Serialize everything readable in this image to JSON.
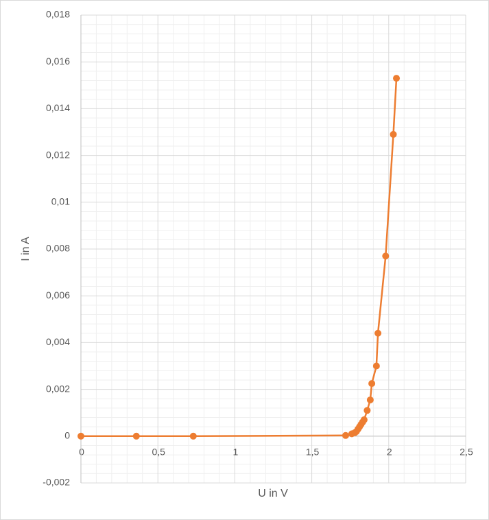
{
  "chart_data": {
    "type": "scatter-line",
    "x_label": "U in V",
    "y_label": "I in A",
    "x": [
      0,
      0.36,
      0.73,
      1.72,
      1.76,
      1.78,
      1.79,
      1.8,
      1.81,
      1.82,
      1.83,
      1.84,
      1.86,
      1.88,
      1.89,
      1.92,
      1.93,
      1.98,
      2.03,
      2.05
    ],
    "values": [
      0,
      0,
      0,
      3e-05,
      0.0001,
      0.00015,
      0.0002,
      0.0003,
      0.0004,
      0.0005,
      0.0006,
      0.0007,
      0.0011,
      0.00155,
      0.00225,
      0.003,
      0.0044,
      0.0077,
      0.0129,
      0.0153
    ],
    "color": "#ed7d31",
    "xlim": [
      0,
      2.5
    ],
    "xticks": [
      0,
      {
        "value": 0.5,
        "label": "0,5"
      },
      1,
      {
        "value": 1.5,
        "label": "1,5"
      },
      2,
      {
        "value": 2.5,
        "label": "2,5"
      }
    ],
    "ylim": [
      -0.002,
      0.018
    ],
    "yticks": [
      {
        "value": -0.002,
        "label": "-0,002"
      },
      0,
      {
        "value": 0.002,
        "label": "0,002"
      },
      {
        "value": 0.004,
        "label": "0,004"
      },
      {
        "value": 0.006,
        "label": "0,006"
      },
      {
        "value": 0.008,
        "label": "0,008"
      },
      {
        "value": 0.01,
        "label": "0,01"
      },
      {
        "value": 0.012,
        "label": "0,012"
      },
      {
        "value": 0.014,
        "label": "0,014"
      },
      {
        "value": 0.016,
        "label": "0,016"
      },
      {
        "value": 0.018,
        "label": "0,018"
      }
    ],
    "grid": true,
    "minor_grid": true
  }
}
